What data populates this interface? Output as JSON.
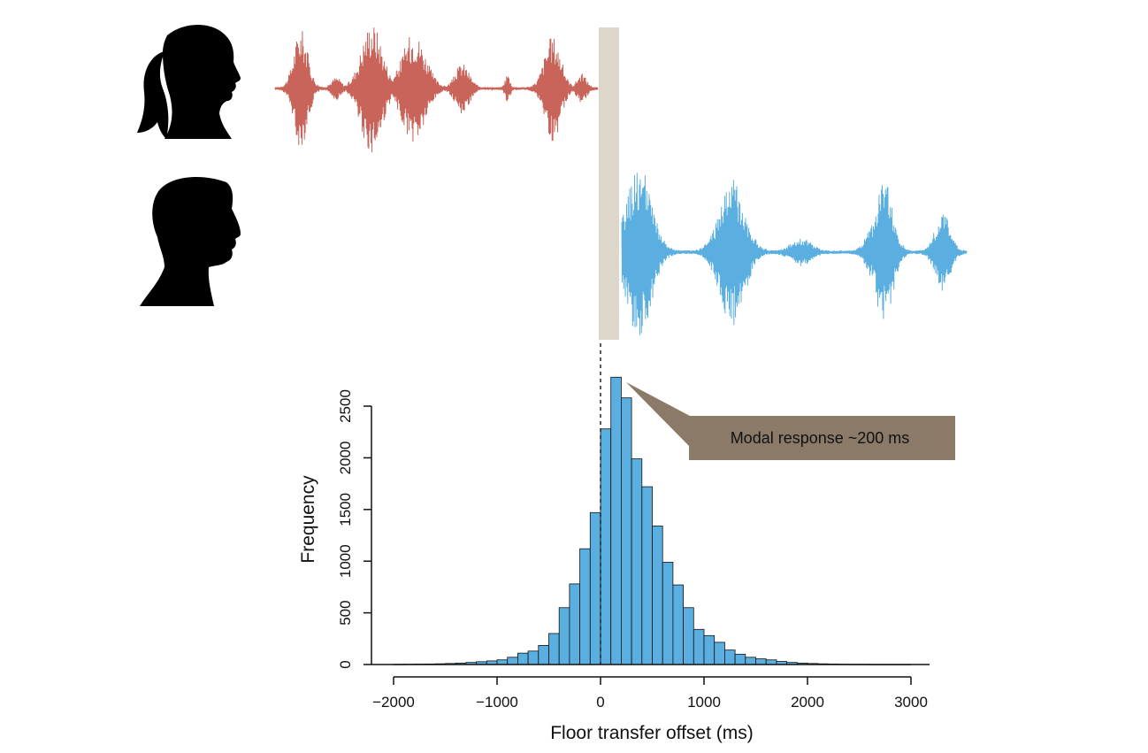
{
  "speakers": {
    "speaker_a": {
      "icon": "woman-head-silhouette-icon",
      "wave_color": "#c86459"
    },
    "speaker_b": {
      "icon": "man-head-silhouette-icon",
      "wave_color": "#5aafe0"
    }
  },
  "gap_band_color": "#ddd6cb",
  "callout": {
    "text": "Modal response ~200 ms",
    "background": "#8b7a67"
  },
  "chart_data": {
    "type": "bar",
    "title": "",
    "xlabel": "Floor transfer offset (ms)",
    "ylabel": "Frequency",
    "xlim": [
      -2000,
      3000
    ],
    "ylim": [
      0,
      2500
    ],
    "x_ticks": [
      -2000,
      -1000,
      0,
      1000,
      2000,
      3000
    ],
    "x_tick_labels": [
      "−2000",
      "−1000",
      "0",
      "1000",
      "2000",
      "3000"
    ],
    "y_ticks": [
      0,
      500,
      1000,
      1500,
      2000,
      2500
    ],
    "y_tick_labels": [
      "0",
      "500",
      "1000",
      "1500",
      "2000",
      "2500"
    ],
    "bin_width": 100,
    "bin_starts": [
      -2000,
      -1900,
      -1800,
      -1700,
      -1600,
      -1500,
      -1400,
      -1300,
      -1200,
      -1100,
      -1000,
      -900,
      -800,
      -700,
      -600,
      -500,
      -400,
      -300,
      -200,
      -100,
      0,
      100,
      200,
      300,
      400,
      500,
      600,
      700,
      800,
      900,
      1000,
      1100,
      1200,
      1300,
      1400,
      1500,
      1600,
      1700,
      1800,
      1900,
      2000,
      2100,
      2200,
      2300,
      2400,
      2500,
      2600,
      2700,
      2800,
      2900
    ],
    "values": [
      2,
      3,
      4,
      5,
      7,
      10,
      14,
      20,
      27,
      35,
      45,
      70,
      110,
      130,
      185,
      300,
      550,
      780,
      1120,
      1470,
      2280,
      2780,
      2580,
      1990,
      1720,
      1340,
      990,
      770,
      550,
      340,
      280,
      215,
      140,
      100,
      70,
      55,
      45,
      30,
      20,
      14,
      10,
      7,
      5,
      3,
      2,
      2,
      1,
      1,
      1,
      1
    ],
    "bar_color": "#5aafe0",
    "reference_line_x": 0,
    "annotations": [
      "Modal response ~200 ms"
    ],
    "grid": false
  }
}
